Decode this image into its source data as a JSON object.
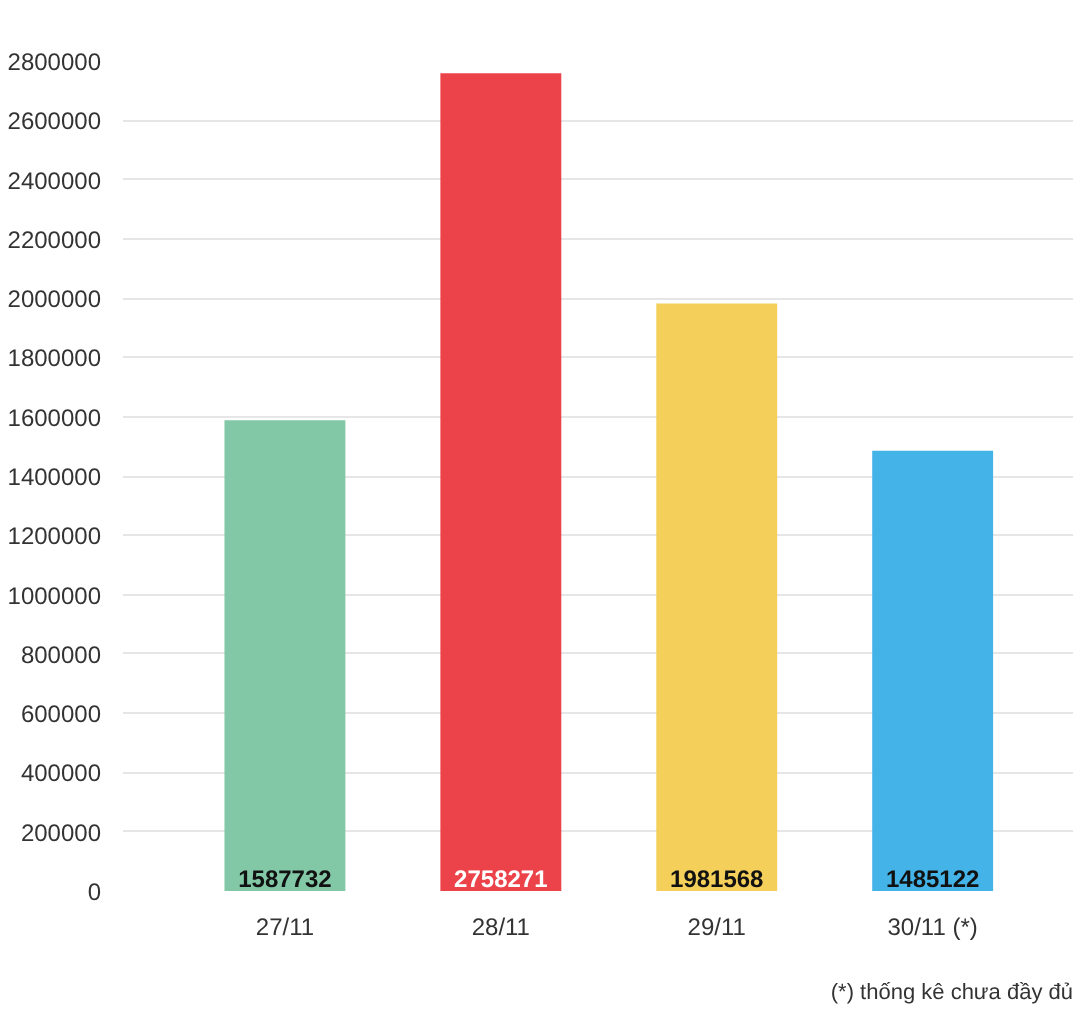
{
  "chart_data": {
    "type": "bar",
    "categories": [
      "27/11",
      "28/11",
      "29/11",
      "30/11 (*)"
    ],
    "values": [
      1587732,
      2758271,
      1981568,
      1485122
    ],
    "colors": [
      "#82c8a6",
      "#ec434b",
      "#f4cf5a",
      "#44b4e8"
    ],
    "ylim": [
      0,
      2800000
    ],
    "yticks": [
      0,
      200000,
      400000,
      600000,
      800000,
      1000000,
      1200000,
      1400000,
      1600000,
      1800000,
      2000000,
      2200000,
      2400000,
      2600000,
      2800000
    ],
    "grid": "y",
    "data_labels": true,
    "annotations": [
      "(*) thống kê chưa đầy đủ"
    ]
  }
}
